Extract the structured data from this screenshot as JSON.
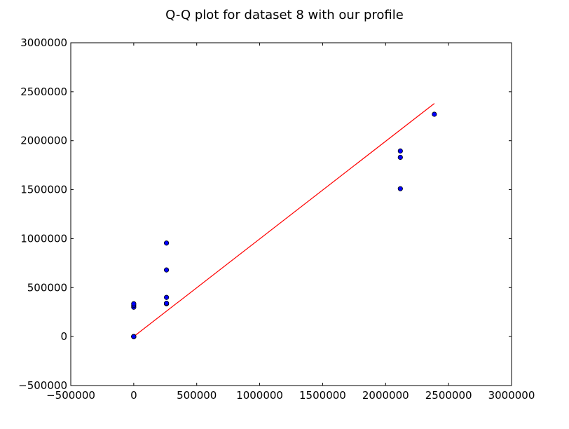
{
  "chart_data": {
    "type": "scatter",
    "title": "Q-Q plot for dataset 8 with our profile",
    "xlabel": "",
    "ylabel": "",
    "xlim": [
      -500000,
      3000000
    ],
    "ylim": [
      -500000,
      3000000
    ],
    "xticks": [
      -500000,
      0,
      500000,
      1000000,
      1500000,
      2000000,
      2500000,
      3000000
    ],
    "yticks": [
      -500000,
      0,
      500000,
      1000000,
      1500000,
      2000000,
      2500000,
      3000000
    ],
    "xtick_labels": [
      "−500000",
      "0",
      "500000",
      "1000000",
      "1500000",
      "2000000",
      "2500000",
      "3000000"
    ],
    "ytick_labels": [
      "−500000",
      "0",
      "500000",
      "1000000",
      "1500000",
      "2000000",
      "2500000",
      "3000000"
    ],
    "grid": false,
    "points": {
      "x": [
        0,
        0,
        0,
        0,
        0,
        0,
        0,
        0,
        260000,
        260000,
        260000,
        260000,
        260000,
        2117000,
        2117000,
        2117000,
        2387000
      ],
      "y": [
        0,
        0,
        0,
        0,
        0,
        300000,
        320000,
        335000,
        335000,
        340000,
        400000,
        680000,
        955000,
        1510000,
        1830000,
        1895000,
        2270000
      ]
    },
    "reference_line": {
      "x": [
        0,
        2387000
      ],
      "y": [
        0,
        2380000
      ]
    },
    "colors": {
      "point_fill": "#0000ff",
      "point_edge": "#000000",
      "line": "#ff0000",
      "axes": "#000000",
      "background": "#ffffff"
    }
  }
}
